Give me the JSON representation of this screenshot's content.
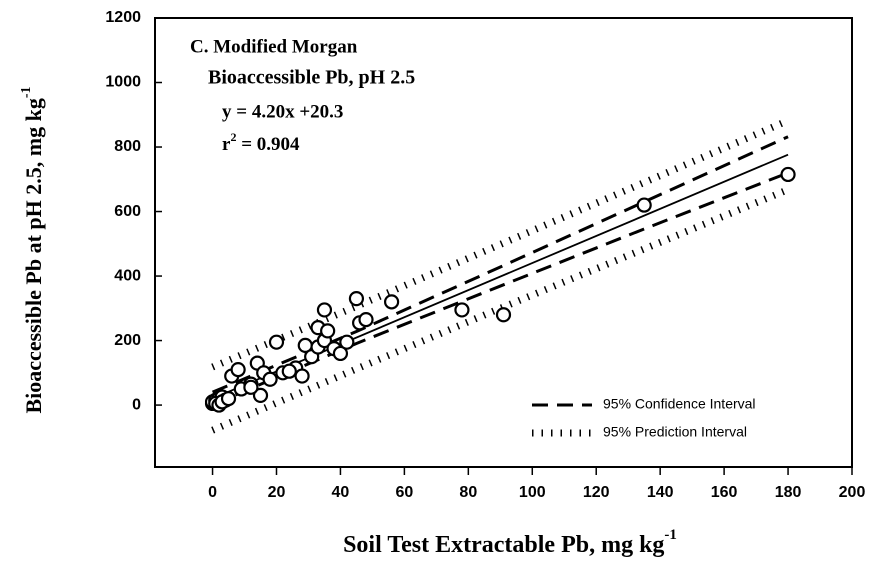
{
  "chart_data": {
    "type": "scatter",
    "annotations": [
      "C. Modified Morgan",
      "Bioaccessible Pb, pH 2.5",
      "y = 4.20x +20.3"
    ],
    "r2": {
      "base": "r",
      "sup": "2",
      "rest": " = 0.904"
    },
    "x_label": {
      "text": "Soil Test Extractable Pb, mg kg",
      "sup": "-1"
    },
    "y_label": {
      "text": "Bioaccessible Pb at pH 2.5, mg kg",
      "sup": "-1"
    },
    "xlim": [
      -18,
      200
    ],
    "ylim": [
      -192,
      1200
    ],
    "xticks": [
      0,
      20,
      40,
      60,
      80,
      100,
      120,
      140,
      160,
      180,
      200
    ],
    "yticks": [
      0,
      200,
      400,
      600,
      800,
      1000,
      1200
    ],
    "points": {
      "color": "#000000",
      "x": [
        0,
        0,
        1,
        2,
        3,
        1,
        2,
        4,
        3,
        5,
        6,
        8,
        9,
        12,
        14,
        15,
        16,
        18,
        20,
        22,
        26,
        28,
        29,
        31,
        33,
        33,
        35,
        35,
        36,
        38,
        40,
        42,
        45,
        46,
        48,
        56,
        78,
        91,
        135,
        180,
        12,
        24
      ],
      "values": [
        5,
        10,
        15,
        20,
        25,
        5,
        0,
        15,
        10,
        20,
        90,
        110,
        50,
        65,
        130,
        30,
        100,
        80,
        195,
        100,
        115,
        90,
        185,
        150,
        240,
        180,
        295,
        200,
        230,
        175,
        160,
        195,
        330,
        255,
        265,
        320,
        295,
        280,
        620,
        715,
        55,
        105
      ]
    },
    "fit": {
      "x": [
        0,
        180
      ],
      "values": [
        20.3,
        776.3
      ]
    },
    "intervals": [
      {
        "name": "95% Confidence Interval",
        "style": "dashed",
        "x": [
          0,
          45,
          90,
          135,
          180
        ],
        "upper": [
          40,
          228,
          428,
          630,
          832
        ],
        "lower": [
          1,
          191,
          369,
          546,
          720
        ]
      },
      {
        "name": "95% Prediction Interval",
        "style": "dotted",
        "x": [
          0,
          45,
          90,
          135,
          180
        ],
        "upper": [
          118,
          306,
          498,
          690,
          882
        ],
        "lower": [
          -78,
          112,
          300,
          484,
          668
        ]
      }
    ]
  }
}
